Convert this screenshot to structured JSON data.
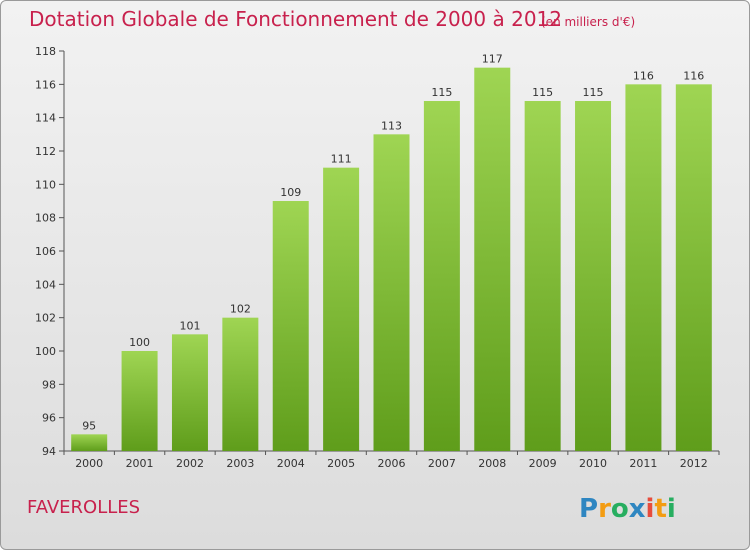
{
  "header": {
    "title": "Dotation Globale de Fonctionnement de 2000 à 2012",
    "unit_note": "(en milliers d'€)"
  },
  "footer": {
    "commune": "FAVEROLLES",
    "logo_text": "Proxiti"
  },
  "colors": {
    "title": "#c8214d",
    "bar_top": "#9fd553",
    "bar_bottom": "#5f9d1b",
    "background": "#e6e6e6"
  },
  "chart_data": {
    "type": "bar",
    "title": "Dotation Globale de Fonctionnement de 2000 à 2012",
    "subtitle": "(en milliers d'€)",
    "xlabel": "",
    "ylabel": "",
    "categories": [
      "2000",
      "2001",
      "2002",
      "2003",
      "2004",
      "2005",
      "2006",
      "2007",
      "2008",
      "2009",
      "2010",
      "2011",
      "2012"
    ],
    "values": [
      95,
      100,
      101,
      102,
      109,
      111,
      113,
      115,
      117,
      115,
      115,
      116,
      116
    ],
    "ylim": [
      94,
      118
    ],
    "yticks": [
      94,
      96,
      98,
      100,
      102,
      104,
      106,
      108,
      110,
      112,
      114,
      116,
      118
    ],
    "grid": false,
    "legend": "none"
  }
}
